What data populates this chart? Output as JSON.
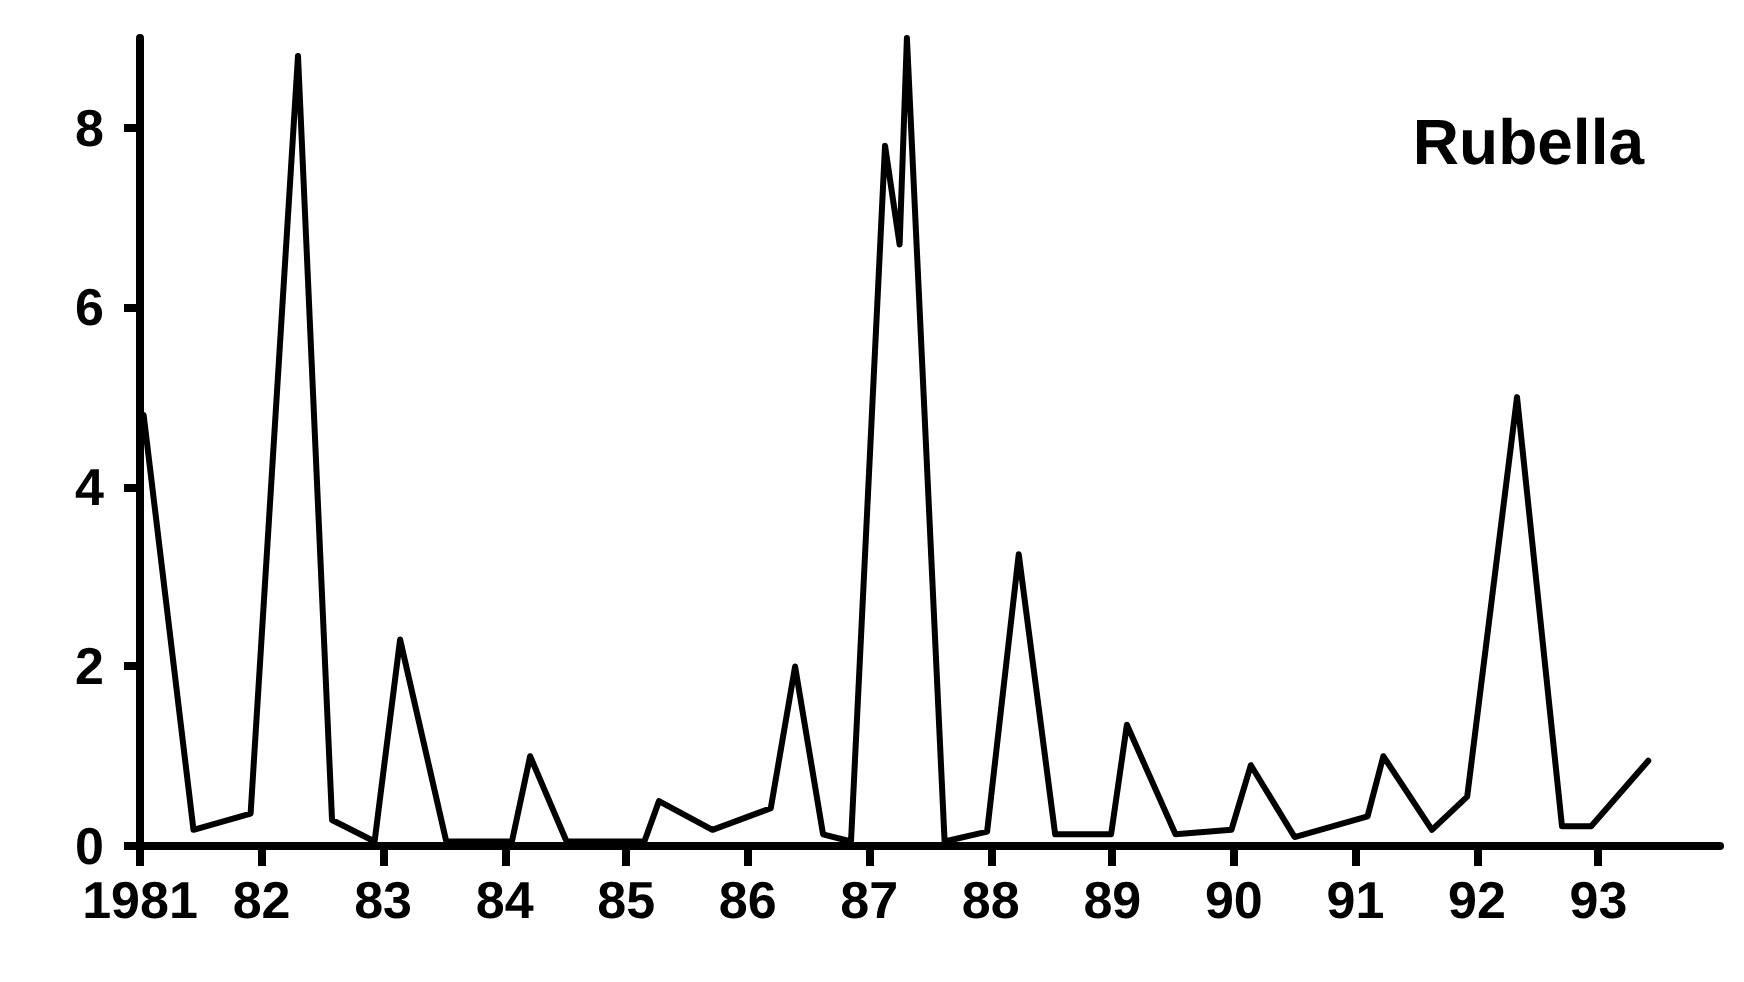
{
  "chart_data": {
    "type": "line",
    "title": "Rubella",
    "x": [
      1981.03,
      1981.44,
      1981.91,
      1982.3,
      1982.58,
      1982.93,
      1983.14,
      1983.52,
      1984.06,
      1984.21,
      1984.51,
      1985.15,
      1985.27,
      1985.71,
      1986.19,
      1986.39,
      1986.62,
      1986.85,
      1987.13,
      1987.25,
      1987.31,
      1987.62,
      1987.97,
      1988.23,
      1988.53,
      1988.99,
      1989.12,
      1989.52,
      1989.98,
      1990.14,
      1990.5,
      1991.1,
      1991.23,
      1991.63,
      1991.92,
      1992.33,
      1992.7,
      1992.94,
      1993.41
    ],
    "series": [
      {
        "color": "#000000",
        "values": [
          4.8,
          0.18,
          0.36,
          8.8,
          0.29,
          0.05,
          2.3,
          0.05,
          0.05,
          1.0,
          0.05,
          0.05,
          0.5,
          0.18,
          0.42,
          2.0,
          0.13,
          0.05,
          7.8,
          6.7,
          9.0,
          0.05,
          0.16,
          3.25,
          0.13,
          0.13,
          1.35,
          0.13,
          0.18,
          0.9,
          0.1,
          0.33,
          1.0,
          0.18,
          0.55,
          5.0,
          0.22,
          0.22,
          0.95
        ]
      }
    ],
    "xlim": [
      1981,
      1994
    ],
    "xticks": [
      {
        "value": 1981,
        "label": "1981"
      },
      {
        "value": 1982,
        "label": "82"
      },
      {
        "value": 1983,
        "label": "83"
      },
      {
        "value": 1984,
        "label": "84"
      },
      {
        "value": 1985,
        "label": "85"
      },
      {
        "value": 1986,
        "label": "86"
      },
      {
        "value": 1987,
        "label": "87"
      },
      {
        "value": 1988,
        "label": "88"
      },
      {
        "value": 1989,
        "label": "89"
      },
      {
        "value": 1990,
        "label": "90"
      },
      {
        "value": 1991,
        "label": "91"
      },
      {
        "value": 1992,
        "label": "92"
      },
      {
        "value": 1993,
        "label": "93"
      }
    ],
    "ylim": [
      0,
      9
    ],
    "yticks": [
      0,
      2,
      4,
      6,
      8
    ],
    "grid": false,
    "marker": "none",
    "line_style": "solid"
  }
}
